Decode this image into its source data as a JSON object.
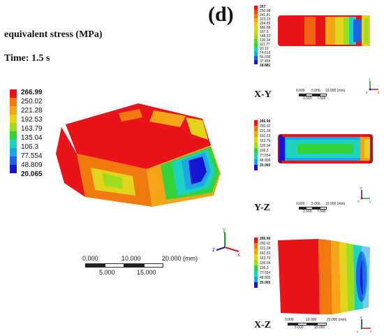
{
  "panel_label": "(d)",
  "header": {
    "title": "equivalent stress (MPa)",
    "time": "Time: 1.5 s"
  },
  "main_legend": {
    "labels": [
      "266.99",
      "250.02",
      "221.28",
      "192.53",
      "163.79",
      "135.04",
      "106.3",
      "77.554",
      "48.809",
      "20.065"
    ]
  },
  "legend_colors": [
    "#e8141a",
    "#f07a10",
    "#f6a518",
    "#e2d41c",
    "#9bdc1e",
    "#34d23a",
    "#1ed2c2",
    "#1ca8e6",
    "#1c64e6",
    "#1414d2"
  ],
  "main_scale": {
    "top_ticks": [
      "0.000",
      "10.000",
      "20.000 (mm)"
    ],
    "bottom_ticks": [
      "5.000",
      "15.000"
    ]
  },
  "views": [
    {
      "label": "X-Y",
      "legend_labels": [
        "267",
        "250.08",
        "241.81",
        "223.23",
        "204.65",
        "186.08",
        "167.5",
        "148.92",
        "130.34",
        "111.77",
        "93.19",
        "74.613",
        "56.036",
        "37.459",
        "18.881"
      ],
      "scale_top": [
        "0.000",
        "5.000",
        "10.000 (mm)"
      ],
      "scale_bottom": [
        "2.500",
        "7.500"
      ],
      "axes": [
        "y",
        "x",
        "z"
      ]
    },
    {
      "label": "Y-Z",
      "legend_labels": [
        "266.99",
        "250.02",
        "221.28",
        "192.53",
        "163.79",
        "135.04",
        "106.3",
        "77.554",
        "48.809",
        "20.065"
      ],
      "scale_top": [
        "0.000",
        "5.000",
        "10.000 (mm)"
      ],
      "scale_bottom": [
        "2.500",
        "7.500"
      ],
      "axes": [
        "z",
        "y",
        "x"
      ]
    },
    {
      "label": "X-Z",
      "legend_labels": [
        "266.99",
        "250.02",
        "221.28",
        "192.53",
        "163.79",
        "135.04",
        "106.3",
        "77.554",
        "48.809",
        "20.065"
      ],
      "scale_top": [
        "0.000",
        "10.000",
        "20.000 (mm)"
      ],
      "scale_bottom": [
        "5.000",
        "15.000"
      ],
      "axes": [
        "z",
        "x",
        "y"
      ]
    }
  ],
  "main_axes": [
    "y",
    "z",
    "x"
  ]
}
